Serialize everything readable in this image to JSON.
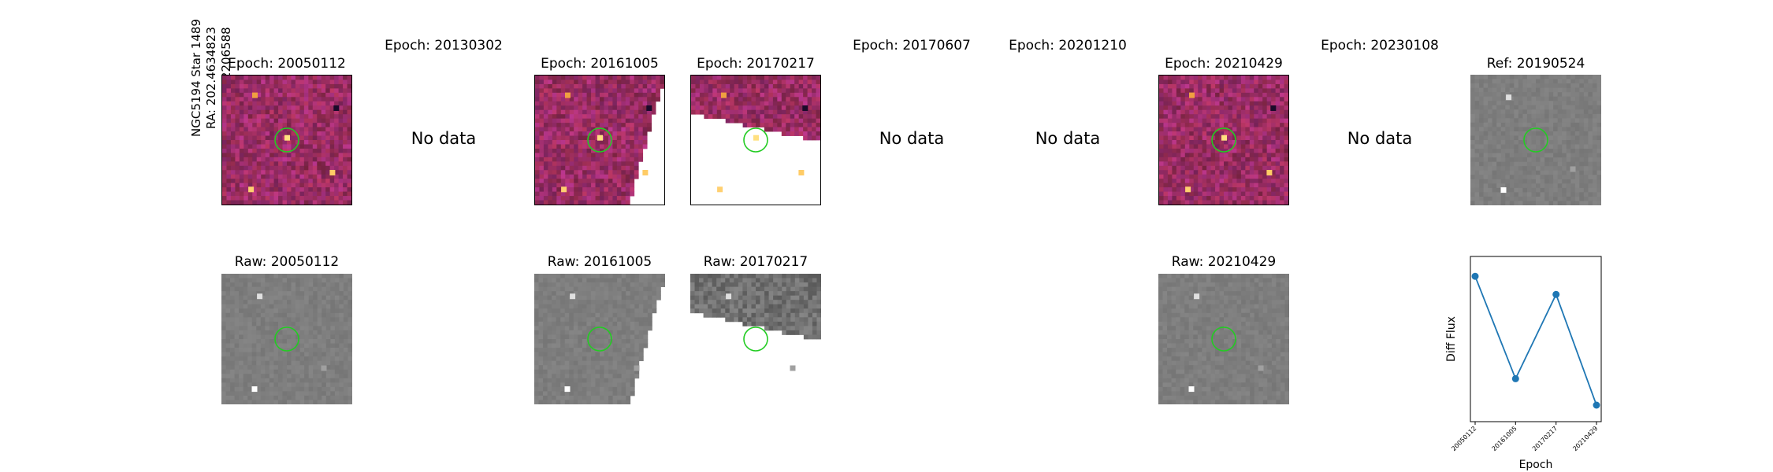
{
  "star": {
    "line1": "NGC5194 Star 1489",
    "line2": "RA: 202.4634823",
    "line3": "Dec: 47.2206588"
  },
  "epochs": [
    {
      "title": "Epoch: 20050112",
      "raw_title": "Raw: 20050112",
      "has_data": true
    },
    {
      "title": "Epoch: 20130302",
      "no_data": "No data",
      "has_data": false
    },
    {
      "title": "Epoch: 20161005",
      "raw_title": "Raw: 20161005",
      "has_data": true
    },
    {
      "title": "Epoch: 20170217",
      "raw_title": "Raw: 20170217",
      "has_data": true
    },
    {
      "title": "Epoch: 20170607",
      "no_data": "No data",
      "has_data": false
    },
    {
      "title": "Epoch: 20201210",
      "no_data": "No data",
      "has_data": false
    },
    {
      "title": "Epoch: 20210429",
      "raw_title": "Raw: 20210429",
      "has_data": true
    },
    {
      "title": "Epoch: 20230108",
      "no_data": "No data",
      "has_data": false
    }
  ],
  "reference": {
    "title": "Ref: 20190524"
  },
  "colors": {
    "diff_base": "#b0407a",
    "raw_gray": "#7f7f7f",
    "circle": "#22cc22",
    "line": "#1f77b4"
  },
  "chart_data": {
    "type": "line",
    "x": [
      "20050112",
      "20161005",
      "20170217",
      "20210429"
    ],
    "y": [
      0.88,
      0.26,
      0.77,
      0.1
    ],
    "xlabel": "Epoch",
    "ylabel": "Diff Flux",
    "y_ticks_visible": false,
    "grid": false
  }
}
